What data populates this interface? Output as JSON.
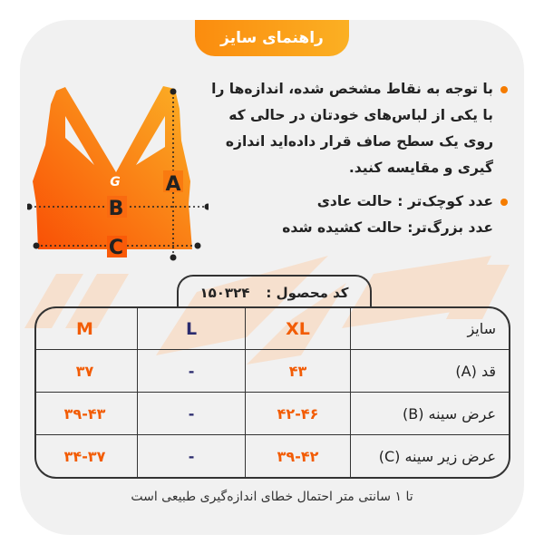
{
  "title": "راهنمای سایز",
  "diagram": {
    "labels": [
      "A",
      "B",
      "C"
    ],
    "logo_text": "G"
  },
  "notes": {
    "paragraph1": "با توجه به نقاط مشخص شده، اندازه‌ها را با یکی از لباس‌های خودتان در حالی که روی یک سطح صاف قرار داده‌اید اندازه گیری و مقایسه کنید.",
    "paragraph2_line1": "عدد کوچک‌تر : حالت عادی",
    "paragraph2_line2": "عدد بزرگ‌تر: حالت کشیده شده"
  },
  "product": {
    "label": "کد محصول :",
    "code": "۱۵۰۳۲۴"
  },
  "table": {
    "headers": [
      "سایز",
      "XL",
      "L",
      "M"
    ],
    "rows": [
      [
        "قد (A)",
        "۴۳",
        "-",
        "۳۷"
      ],
      [
        "عرض سینه (B)",
        "۴۲-۴۶",
        "-",
        "۳۹-۴۳"
      ],
      [
        "عرض زیر سینه (C)",
        "۳۹-۴۲",
        "-",
        "۳۴-۳۷"
      ]
    ]
  },
  "footer": "تا ۱ سانتی متر احتمال خطای اندازه‌گیری طبیعی است",
  "colors": {
    "accent": "#f57c00",
    "orange_value": "#f25c05",
    "navy_value": "#2b2b6e",
    "background": "#f1f1f1"
  }
}
